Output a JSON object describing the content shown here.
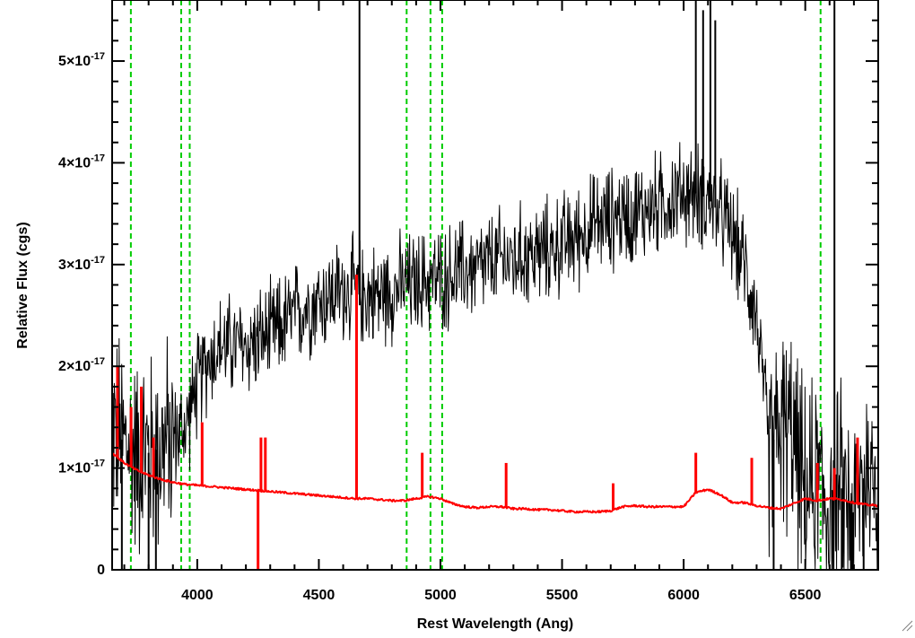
{
  "chart_data": {
    "type": "line",
    "title": "",
    "xlabel": "Rest Wavelength (Ang)",
    "ylabel": "Relative Flux (cgs)",
    "xlim": [
      3650,
      6800
    ],
    "ylim": [
      0,
      5.6e-17
    ],
    "x_ticks": [
      4000,
      4500,
      5000,
      5500,
      6000,
      6500
    ],
    "y_ticks": [
      {
        "value": 0,
        "label": "0"
      },
      {
        "value": 1e-17,
        "mantissa": "1×10",
        "exponent": "-17"
      },
      {
        "value": 2e-17,
        "mantissa": "2×10",
        "exponent": "-17"
      },
      {
        "value": 3e-17,
        "mantissa": "3×10",
        "exponent": "-17"
      },
      {
        "value": 4e-17,
        "mantissa": "4×10",
        "exponent": "-17"
      },
      {
        "value": 5e-17,
        "mantissa": "5×10",
        "exponent": "-17"
      }
    ],
    "vertical_markers": [
      3727,
      3934,
      3969,
      4861,
      4959,
      5007,
      6563
    ],
    "series": [
      {
        "color": "#000000",
        "style": "noisy",
        "x": [
          3650,
          3700,
          3750,
          3800,
          3850,
          3900,
          3950,
          4000,
          4050,
          4100,
          4150,
          4200,
          4250,
          4300,
          4350,
          4400,
          4450,
          4500,
          4550,
          4600,
          4650,
          4700,
          4750,
          4800,
          4850,
          4900,
          4950,
          5000,
          5050,
          5100,
          5150,
          5200,
          5250,
          5300,
          5350,
          5400,
          5450,
          5500,
          5550,
          5600,
          5650,
          5700,
          5750,
          5800,
          5850,
          5900,
          5950,
          6000,
          6050,
          6100,
          6150,
          6200,
          6250,
          6300,
          6350,
          6400,
          6450,
          6500,
          6550,
          6600,
          6650,
          6700,
          6750,
          6800
        ],
        "y": [
          1.4e-17,
          1.25e-17,
          1.15e-17,
          1.15e-17,
          1.2e-17,
          1.3e-17,
          1.4e-17,
          1.8e-17,
          2.1e-17,
          2.2e-17,
          2.2e-17,
          2.2e-17,
          2.25e-17,
          2.3e-17,
          2.4e-17,
          2.5e-17,
          2.6e-17,
          2.65e-17,
          2.7e-17,
          2.75e-17,
          2.75e-17,
          2.7e-17,
          2.7e-17,
          2.75e-17,
          2.8e-17,
          2.8e-17,
          2.85e-17,
          2.85e-17,
          2.9e-17,
          2.95e-17,
          2.95e-17,
          3e-17,
          3.05e-17,
          3.05e-17,
          3.1e-17,
          3.1e-17,
          3.15e-17,
          3.2e-17,
          3.25e-17,
          3.35e-17,
          3.4e-17,
          3.45e-17,
          3.5e-17,
          3.5e-17,
          3.55e-17,
          3.6e-17,
          3.65e-17,
          3.7e-17,
          3.7e-17,
          3.65e-17,
          3.5e-17,
          3.3e-17,
          3e-17,
          2.5e-17,
          1.2e-17,
          1.4e-17,
          1.3e-17,
          7e-18,
          9e-18,
          6e-18,
          8e-18,
          5e-18,
          1e-17,
          8e-18
        ],
        "spikes": [
          {
            "x": 4667,
            "y": 5.6e-17
          },
          {
            "x": 4668,
            "y": 2.6e-17
          },
          {
            "x": 3690,
            "y": 0.0
          },
          {
            "x": 3800,
            "y": 0.0
          },
          {
            "x": 3830,
            "y": 0.0
          },
          {
            "x": 6050,
            "y": 5.6e-17
          },
          {
            "x": 6080,
            "y": 5.5e-17
          },
          {
            "x": 6110,
            "y": 5.6e-17
          },
          {
            "x": 6130,
            "y": 5.4e-17
          },
          {
            "x": 6370,
            "y": 0.0
          },
          {
            "x": 6620,
            "y": 5.6e-17
          },
          {
            "x": 6650,
            "y": 0.0
          },
          {
            "x": 6690,
            "y": 0.0
          },
          {
            "x": 6740,
            "y": 0.0
          }
        ]
      },
      {
        "color": "#ff0000",
        "style": "smooth",
        "x": [
          3650,
          3700,
          3750,
          3800,
          3850,
          3900,
          3950,
          4000,
          4050,
          4100,
          4150,
          4200,
          4250,
          4300,
          4350,
          4400,
          4450,
          4500,
          4550,
          4600,
          4650,
          4700,
          4750,
          4800,
          4850,
          4900,
          4950,
          5000,
          5050,
          5100,
          5150,
          5200,
          5250,
          5300,
          5350,
          5400,
          5450,
          5500,
          5550,
          5600,
          5650,
          5700,
          5750,
          5800,
          5850,
          5900,
          5950,
          6000,
          6050,
          6100,
          6150,
          6200,
          6250,
          6300,
          6350,
          6400,
          6450,
          6500,
          6550,
          6600,
          6650,
          6700,
          6750,
          6800
        ],
        "y": [
          1.15e-17,
          1.05e-17,
          9.8e-18,
          9.3e-18,
          8.9e-18,
          8.6e-18,
          8.4e-18,
          8.3e-18,
          8.2e-18,
          8.1e-18,
          8e-18,
          7.9e-18,
          7.8e-18,
          7.7e-18,
          7.6e-18,
          7.5e-18,
          7.4e-18,
          7.3e-18,
          7.2e-18,
          7.1e-18,
          7e-18,
          7e-18,
          6.9e-18,
          6.8e-18,
          6.8e-18,
          7e-18,
          7.2e-18,
          7e-18,
          6.5e-18,
          6.2e-18,
          6.1e-18,
          6.2e-18,
          6.2e-18,
          6e-18,
          6e-18,
          5.9e-18,
          5.9e-18,
          5.8e-18,
          5.7e-18,
          5.7e-18,
          5.7e-18,
          5.8e-18,
          6.2e-18,
          6.3e-18,
          6.2e-18,
          6.2e-18,
          6.2e-18,
          6.2e-18,
          7.6e-18,
          7.9e-18,
          7.4e-18,
          6.6e-18,
          6.6e-18,
          6.3e-18,
          6.1e-18,
          6e-18,
          6.5e-18,
          7e-18,
          6.8e-18,
          7e-18,
          6.9e-18,
          6.6e-18,
          6.4e-18,
          6.3e-18
        ],
        "spikes": [
          {
            "x": 3672,
            "y": 2e-17
          },
          {
            "x": 3728,
            "y": 1.6e-17
          },
          {
            "x": 3770,
            "y": 1.8e-17
          },
          {
            "x": 3820,
            "y": 1.3e-17
          },
          {
            "x": 4020,
            "y": 1.45e-17
          },
          {
            "x": 4250,
            "y": 0.0
          },
          {
            "x": 4262,
            "y": 1.3e-17
          },
          {
            "x": 4280,
            "y": 1.3e-17
          },
          {
            "x": 4655,
            "y": 2.9e-17
          },
          {
            "x": 4925,
            "y": 1.15e-17
          },
          {
            "x": 5270,
            "y": 1.05e-17
          },
          {
            "x": 5710,
            "y": 8.5e-18
          },
          {
            "x": 6050,
            "y": 1.15e-17
          },
          {
            "x": 6280,
            "y": 1.1e-17
          },
          {
            "x": 6550,
            "y": 1.05e-17
          },
          {
            "x": 6620,
            "y": 1e-17
          },
          {
            "x": 6715,
            "y": 1.3e-17
          }
        ]
      }
    ],
    "marker_color": "#00cc00",
    "grid": false,
    "legend": "none"
  }
}
